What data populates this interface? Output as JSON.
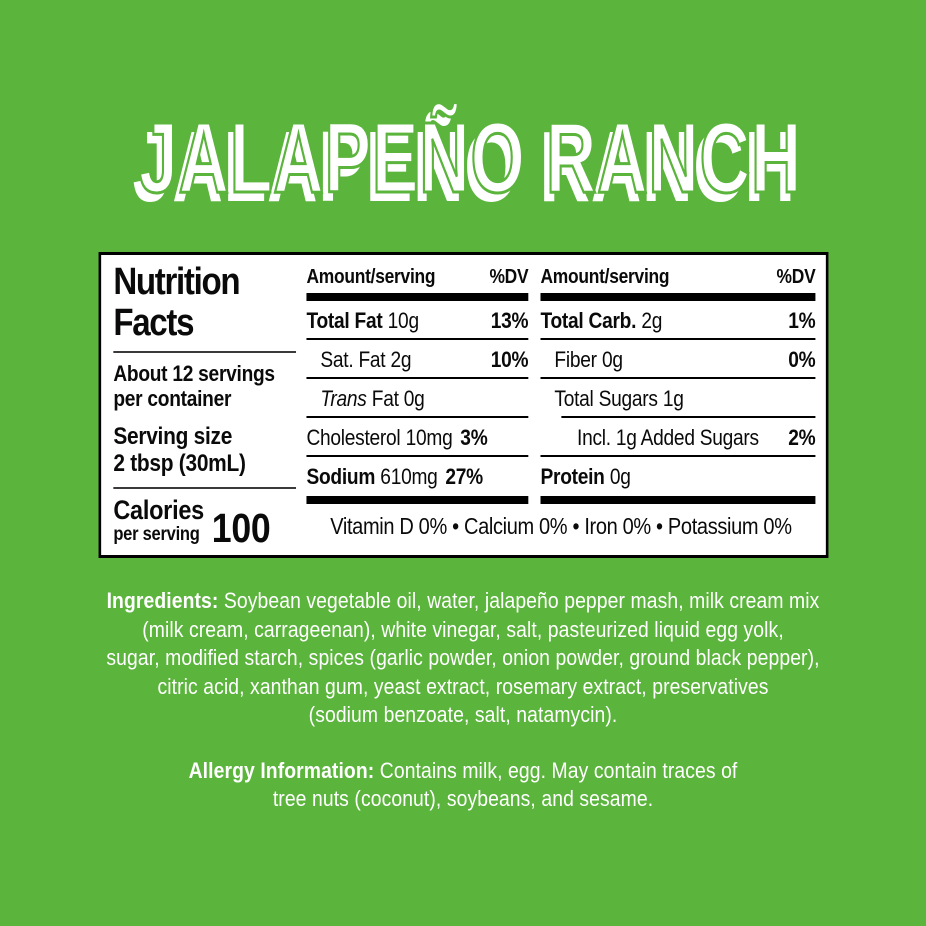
{
  "title": "JALAPEÑO RANCH",
  "colors": {
    "background_green": "#5bb43c",
    "panel_background": "#ffffff",
    "panel_text": "#0a0a0a",
    "light_text": "#ffffff",
    "panel_border": "#000000"
  },
  "nutrition": {
    "heading": "Nutrition Facts",
    "servings_line1": "About 12 servings",
    "servings_line2": "per container",
    "serving_size_label": "Serving size",
    "serving_size_value": "2 tbsp (30mL)",
    "calories_label": "Calories",
    "calories_sub": "per serving",
    "calories_value": "100",
    "col_header_amount": "Amount/serving",
    "col_header_dv": "%DV",
    "col1": {
      "rows": [
        {
          "name": "Total Fat",
          "amount": "10g",
          "dv": "13%"
        },
        {
          "name": "Sat. Fat",
          "amount": "2g",
          "dv": "10%"
        },
        {
          "name": "Trans",
          "amount": "Fat 0g",
          "dv": ""
        },
        {
          "name": "Cholesterol",
          "amount": "10mg",
          "dv": "3%"
        },
        {
          "name": "Sodium",
          "amount": "610mg",
          "dv": "27%"
        }
      ]
    },
    "col2": {
      "rows": [
        {
          "name": "Total Carb.",
          "amount": "2g",
          "dv": "1%"
        },
        {
          "name": "Fiber",
          "amount": "0g",
          "dv": "0%"
        },
        {
          "name": "Total Sugars",
          "amount": "1g",
          "dv": ""
        },
        {
          "name": "Incl. 1g Added Sugars",
          "amount": "",
          "dv": "2%"
        },
        {
          "name": "Protein",
          "amount": "0g",
          "dv": ""
        }
      ]
    },
    "micronutrients": "Vitamin D 0% • Calcium 0% • Iron 0% • Potassium 0%"
  },
  "ingredients": {
    "label": "Ingredients:",
    "line1_rest": " Soybean vegetable oil, water, jalapeño pepper mash, milk cream mix",
    "lines": [
      "(milk cream, carrageenan), white vinegar, salt, pasteurized liquid egg yolk,",
      "sugar, modified starch, spices (garlic powder, onion powder, ground black pepper),",
      "citric acid, xanthan gum, yeast extract, rosemary extract, preservatives",
      "(sodium benzoate, salt, natamycin)."
    ]
  },
  "allergy": {
    "label": "Allergy Information:",
    "line1_rest": " Contains milk, egg. May contain traces of",
    "line2": "tree nuts (coconut), soybeans, and sesame."
  }
}
